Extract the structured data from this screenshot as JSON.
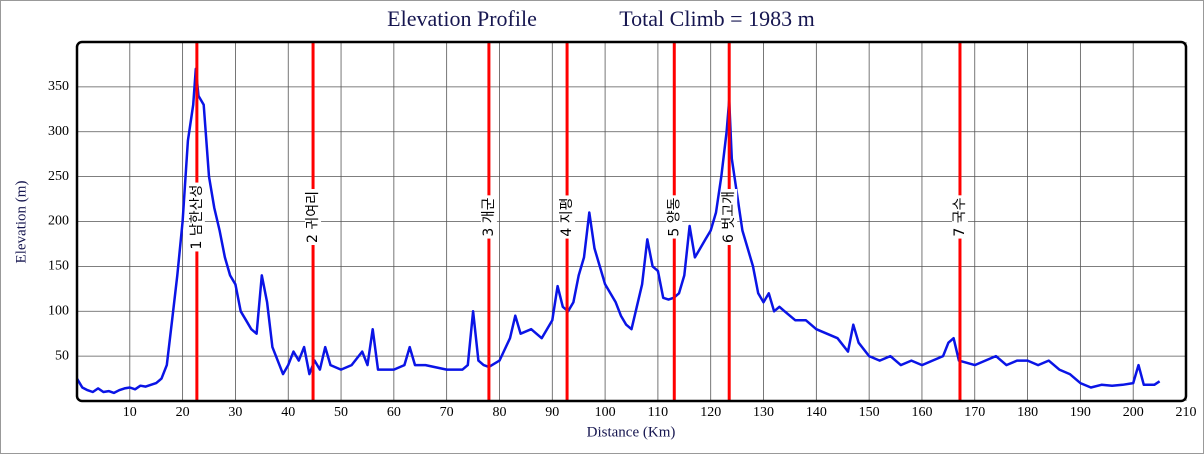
{
  "chart_data": {
    "type": "line",
    "title": "Elevation Profile",
    "subtitle": "Total Climb = 1983 m",
    "x_label": "Distance (Km)",
    "y_label": "Elevation (m)",
    "color": "#0a14e6",
    "marker_color": "#ff0000",
    "grid": true,
    "xlim": [
      0,
      210
    ],
    "ylim": [
      0,
      400
    ],
    "xticks": [
      10,
      20,
      30,
      40,
      50,
      60,
      70,
      80,
      90,
      100,
      110,
      120,
      130,
      140,
      150,
      160,
      170,
      180,
      190,
      200,
      210
    ],
    "yticks": [
      50,
      100,
      150,
      200,
      250,
      300,
      350
    ],
    "markers": [
      {
        "x": 22.7,
        "label": "1 남한산성"
      },
      {
        "x": 44.7,
        "label": "2 귀여리"
      },
      {
        "x": 78.0,
        "label": "3 개군"
      },
      {
        "x": 92.8,
        "label": "4 지평"
      },
      {
        "x": 113.1,
        "label": "5 양동"
      },
      {
        "x": 123.5,
        "label": "6 벗고개"
      },
      {
        "x": 167.2,
        "label": "7 국수"
      }
    ],
    "x": [
      0,
      1,
      2,
      3,
      4,
      5,
      6,
      7,
      8,
      9,
      10,
      11,
      12,
      13,
      14,
      15,
      16,
      17,
      18,
      19,
      20,
      21,
      22,
      22.5,
      23,
      24,
      25,
      26,
      27,
      28,
      29,
      30,
      31,
      32,
      33,
      34,
      35,
      36,
      37,
      38,
      39,
      40,
      41,
      42,
      43,
      44,
      45,
      46,
      47,
      48,
      50,
      52,
      54,
      55,
      56,
      57,
      60,
      62,
      63,
      64,
      66,
      70,
      73,
      74,
      75,
      76,
      77,
      78,
      80,
      82,
      83,
      84,
      86,
      88,
      90,
      91,
      92,
      93,
      94,
      95,
      96,
      97,
      98,
      99,
      100,
      102,
      103,
      104,
      105,
      107,
      108,
      109,
      110,
      111,
      112,
      113,
      114,
      115,
      116,
      117,
      118,
      119,
      120,
      121,
      122,
      123,
      123.5,
      124,
      125,
      126,
      127,
      128,
      129,
      130,
      131,
      132,
      133,
      134,
      136,
      138,
      140,
      142,
      144,
      146,
      147,
      148,
      150,
      152,
      154,
      156,
      158,
      160,
      162,
      164,
      165,
      166,
      167,
      170,
      172,
      174,
      176,
      178,
      180,
      182,
      184,
      186,
      188,
      190,
      192,
      194,
      196,
      198,
      200,
      201,
      202,
      204,
      205
    ],
    "values": [
      25,
      15,
      12,
      10,
      14,
      10,
      11,
      9,
      12,
      14,
      15,
      13,
      17,
      16,
      18,
      20,
      25,
      40,
      90,
      140,
      200,
      290,
      330,
      370,
      340,
      330,
      250,
      215,
      190,
      160,
      140,
      130,
      100,
      90,
      80,
      75,
      140,
      110,
      60,
      45,
      30,
      40,
      55,
      45,
      60,
      30,
      45,
      35,
      60,
      40,
      35,
      40,
      55,
      40,
      80,
      35,
      35,
      40,
      60,
      40,
      40,
      35,
      35,
      40,
      100,
      45,
      40,
      38,
      45,
      70,
      95,
      75,
      80,
      70,
      90,
      128,
      105,
      100,
      110,
      140,
      160,
      210,
      170,
      150,
      130,
      110,
      95,
      85,
      80,
      130,
      180,
      150,
      145,
      115,
      113,
      115,
      120,
      140,
      195,
      160,
      170,
      180,
      190,
      210,
      250,
      300,
      335,
      270,
      230,
      190,
      170,
      150,
      120,
      110,
      120,
      100,
      105,
      100,
      90,
      90,
      80,
      75,
      70,
      55,
      85,
      65,
      50,
      45,
      50,
      40,
      45,
      40,
      45,
      50,
      65,
      70,
      45,
      40,
      45,
      50,
      40,
      45,
      45,
      40,
      45,
      35,
      30,
      20,
      15,
      18,
      17,
      18,
      20,
      40,
      18,
      18,
      22
    ]
  }
}
